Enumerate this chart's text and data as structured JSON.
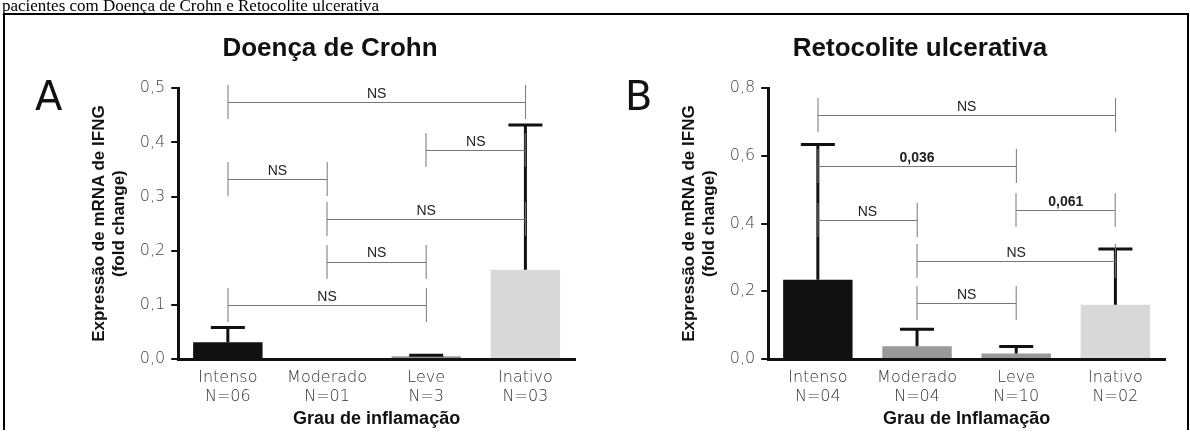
{
  "chart_data": [
    {
      "type": "bar",
      "title": "Doença de Crohn",
      "xlabel": "Grau de inflamação",
      "ylabel": "Expressão de mRNA de IFNG\n(fold change)",
      "categories": [
        "Intenso\nN=06",
        "Moderado\nN=01",
        "Leve\nN=3",
        "Inativo\nN=03"
      ],
      "values": [
        0.031,
        0,
        0.005,
        0.165
      ],
      "colors": [
        "#111111",
        "#999999",
        "#999999",
        "#d9d9d9"
      ],
      "errors": [
        [
          0.031,
          0.058
        ],
        null,
        [
          0.005,
          0.007
        ],
        [
          0.165,
          0.432
        ]
      ],
      "ylim": [
        0,
        0.5
      ],
      "yticks": [
        {
          "value": 0,
          "label": "0,0"
        },
        {
          "value": 0.1,
          "label": "0,1"
        },
        {
          "value": 0.2,
          "label": "0,2"
        },
        {
          "value": 0.3,
          "label": "0,3"
        },
        {
          "value": 0.4,
          "label": "0,4"
        },
        {
          "value": 0.5,
          "label": "0,5"
        }
      ],
      "annotations": [
        "pacientes com Doença de Crohn e Retocolite ulcerativa",
        "A",
        "NS",
        "NS",
        "NS",
        "NS",
        "NS",
        "NS"
      ],
      "grid": false,
      "legend": false
    },
    {
      "type": "bar",
      "title": "Retocolite ulcerativa",
      "xlabel": "Grau de Inflamação",
      "ylabel": "Expressão de mRNA de IFNG\n(fold change)",
      "categories": [
        "Intenso\nN=04",
        "Moderado\nN=04",
        "Leve\nN=10",
        "Inativo\nN=02"
      ],
      "values": [
        0.234,
        0.038,
        0.016,
        0.16
      ],
      "colors": [
        "#111111",
        "#999999",
        "#999999",
        "#d9d9d9"
      ],
      "errors": [
        [
          0.234,
          0.634
        ],
        [
          0.038,
          0.088
        ],
        [
          0.016,
          0.037
        ],
        [
          0.16,
          0.325
        ]
      ],
      "ylim": [
        0,
        0.8
      ],
      "yticks": [
        {
          "value": 0,
          "label": "0,0"
        },
        {
          "value": 0.2,
          "label": "0,2"
        },
        {
          "value": 0.4,
          "label": "0,4"
        },
        {
          "value": 0.6,
          "label": "0,6"
        },
        {
          "value": 0.8,
          "label": "0,8"
        }
      ],
      "annotations": [
        "B",
        "NS",
        "0,036",
        "0,061",
        "NS",
        "NS",
        "NS"
      ],
      "grid": false,
      "legend": false
    }
  ]
}
